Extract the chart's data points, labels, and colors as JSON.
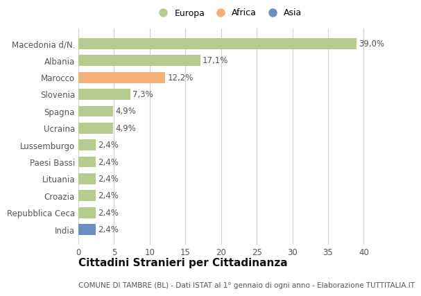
{
  "categories": [
    "Macedonia d/N.",
    "Albania",
    "Marocco",
    "Slovenia",
    "Spagna",
    "Ucraina",
    "Lussemburgo",
    "Paesi Bassi",
    "Lituania",
    "Croazia",
    "Repubblica Ceca",
    "India"
  ],
  "values": [
    39.0,
    17.1,
    12.2,
    7.3,
    4.9,
    4.9,
    2.4,
    2.4,
    2.4,
    2.4,
    2.4,
    2.4
  ],
  "labels": [
    "39,0%",
    "17,1%",
    "12,2%",
    "7,3%",
    "4,9%",
    "4,9%",
    "2,4%",
    "2,4%",
    "2,4%",
    "2,4%",
    "2,4%",
    "2,4%"
  ],
  "colors": [
    "#b5cc8e",
    "#b5cc8e",
    "#f5b07a",
    "#b5cc8e",
    "#b5cc8e",
    "#b5cc8e",
    "#b5cc8e",
    "#b5cc8e",
    "#b5cc8e",
    "#b5cc8e",
    "#b5cc8e",
    "#6b8ec4"
  ],
  "legend_labels": [
    "Europa",
    "Africa",
    "Asia"
  ],
  "legend_colors": [
    "#b5cc8e",
    "#f5b07a",
    "#6b8ec4"
  ],
  "xlim": [
    0,
    42
  ],
  "xticks": [
    0,
    5,
    10,
    15,
    20,
    25,
    30,
    35,
    40
  ],
  "title": "Cittadini Stranieri per Cittadinanza",
  "subtitle": "COMUNE DI TAMBRE (BL) - Dati ISTAT al 1° gennaio di ogni anno - Elaborazione TUTTITALIA.IT",
  "bg_color": "#ffffff",
  "plot_bg_color": "#ffffff",
  "grid_color": "#d0d0d0",
  "bar_height": 0.65,
  "title_fontsize": 11,
  "subtitle_fontsize": 7.5,
  "tick_fontsize": 8.5,
  "label_fontsize": 8.5,
  "legend_fontsize": 9
}
